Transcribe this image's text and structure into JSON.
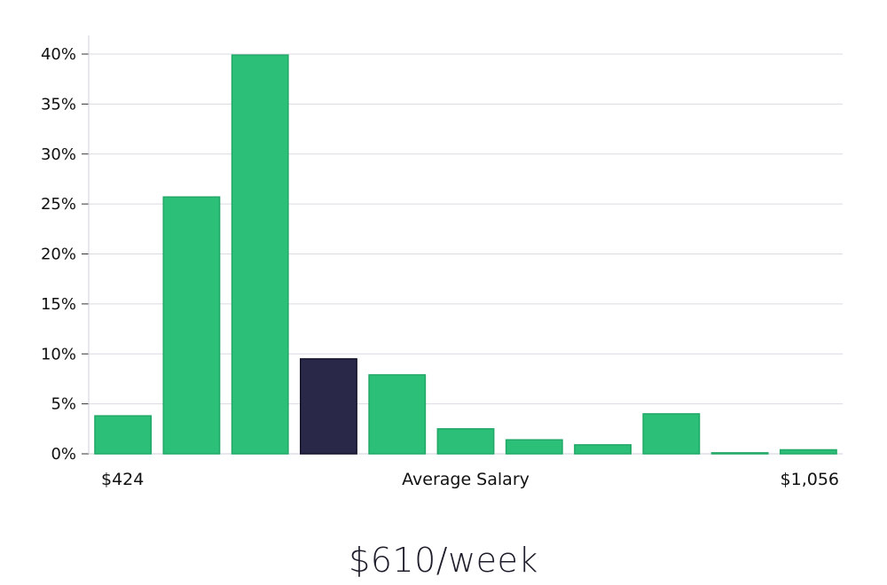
{
  "chart_data": {
    "type": "bar",
    "title": "",
    "xlabel": "Average Salary",
    "ylabel": "",
    "x_range_labels": {
      "min": "$424",
      "max": "$1,056"
    },
    "ylim": [
      0,
      40
    ],
    "yticks": [
      0,
      5,
      10,
      15,
      20,
      25,
      30,
      35,
      40
    ],
    "ytick_labels": [
      "0%",
      "5%",
      "10%",
      "15%",
      "20%",
      "25%",
      "30%",
      "35%",
      "40%"
    ],
    "grid": true,
    "series": [
      {
        "values": [
          3.8,
          25.7,
          39.9,
          9.5,
          7.9,
          2.5,
          1.4,
          0.9,
          4.0,
          0.1,
          0.4
        ]
      }
    ],
    "highlight_index": 3,
    "colors": {
      "bar": "#2bbf78",
      "highlight": "#2a2848",
      "grid": "#d9dbe3",
      "axis": "#cfd2dc"
    }
  },
  "summary": {
    "value_text": "$610/week"
  }
}
